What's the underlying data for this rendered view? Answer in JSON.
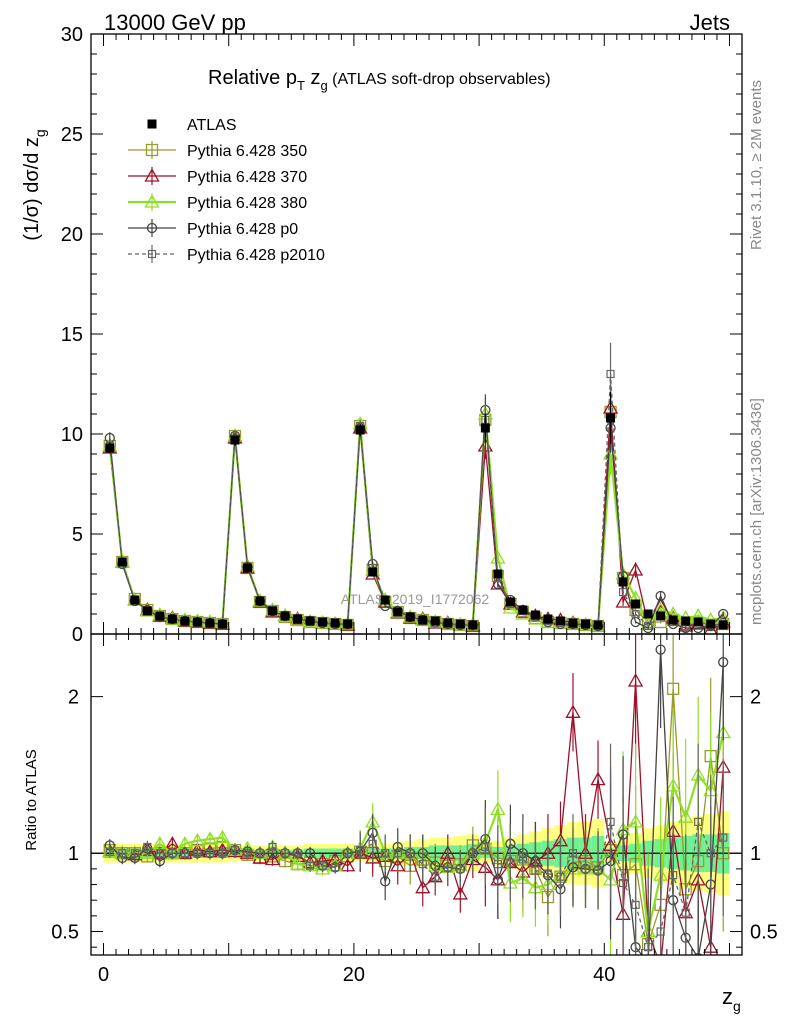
{
  "header": {
    "left": "13000 GeV pp",
    "right": "Jets"
  },
  "side": {
    "rivet": "Rivet 3.1.10, ≥ 2M events",
    "mcplots": "mcplots.cern.ch [arXiv:1306.3436]"
  },
  "watermark": "ATLAS_2019_I1772062",
  "colors": {
    "ATLAS": "#000000",
    "p350": "#9a9a2a",
    "p370": "#a0102a",
    "p380": "#8fe023",
    "p0": "#444444",
    "p2010": "#666666",
    "band_outer": "#ffff80",
    "band_inner": "#70f090"
  },
  "chart_data": [
    {
      "type": "line",
      "title_main": "Relative p",
      "title_sub_T": "T",
      "title_mid": " z",
      "title_sub_g": "g",
      "title_rest": " (ATLAS soft-drop observables)",
      "ylabel": "(1/σ) dσ/d z",
      "ylabel_sub": "g",
      "xlabel": "z",
      "xlabel_sub": "g",
      "xlim": [
        -1,
        51
      ],
      "ylim": [
        0,
        30
      ],
      "yticks": [
        0,
        5,
        10,
        15,
        20,
        25,
        30
      ],
      "xticks": [
        0,
        20,
        40
      ],
      "legend_position": "top-left",
      "series": [
        {
          "name": "ATLAS",
          "key": "ATLAS",
          "values": [
            9.3,
            3.6,
            1.7,
            1.15,
            0.9,
            0.75,
            0.65,
            0.6,
            0.55,
            0.5,
            9.7,
            3.3,
            1.65,
            1.15,
            0.9,
            0.75,
            0.65,
            0.6,
            0.55,
            0.5,
            10.2,
            3.1,
            1.7,
            1.1,
            0.85,
            0.7,
            0.65,
            0.55,
            0.5,
            0.45,
            10.3,
            3.0,
            1.6,
            1.2,
            0.95,
            0.75,
            0.65,
            0.55,
            0.5,
            0.45,
            10.8,
            2.6,
            1.5,
            1.0,
            0.9,
            0.7,
            0.65,
            0.6,
            0.5,
            0.45
          ]
        },
        {
          "name": "Pythia 6.428 350",
          "key": "p350",
          "values": [
            9.4,
            3.6,
            1.75,
            1.2,
            0.9,
            0.75,
            0.65,
            0.6,
            0.55,
            0.5,
            9.9,
            3.3,
            1.6,
            1.15,
            0.85,
            0.7,
            0.6,
            0.55,
            0.5,
            0.45,
            10.4,
            3.2,
            1.6,
            1.1,
            0.8,
            0.7,
            0.6,
            0.5,
            0.45,
            0.4,
            10.7,
            2.9,
            1.5,
            1.1,
            0.8,
            0.6,
            0.55,
            0.5,
            0.45,
            0.4,
            11.1,
            2.8,
            1.2,
            0.6,
            0.6,
            0.7,
            0.5,
            0.55,
            0.45,
            0.5
          ]
        },
        {
          "name": "Pythia 6.428 370",
          "key": "p370",
          "values": [
            9.3,
            3.6,
            1.7,
            1.2,
            0.9,
            0.8,
            0.65,
            0.6,
            0.55,
            0.5,
            9.8,
            3.3,
            1.6,
            1.1,
            0.9,
            0.75,
            0.6,
            0.55,
            0.5,
            0.45,
            10.3,
            3.0,
            1.6,
            1.05,
            0.8,
            0.75,
            0.55,
            0.55,
            0.45,
            0.4,
            9.4,
            2.5,
            1.5,
            1.1,
            0.9,
            0.75,
            0.7,
            0.55,
            0.45,
            0.4,
            11.3,
            1.6,
            3.2,
            0.5,
            1.4,
            0.8,
            0.4,
            0.5,
            0.2,
            0.6
          ]
        },
        {
          "name": "Pythia 6.428 380",
          "key": "p380",
          "values": [
            9.4,
            3.6,
            1.7,
            1.15,
            0.95,
            0.75,
            0.7,
            0.65,
            0.6,
            0.55,
            9.9,
            3.4,
            1.65,
            1.2,
            0.9,
            0.7,
            0.6,
            0.55,
            0.5,
            0.5,
            10.5,
            3.2,
            1.7,
            1.1,
            0.85,
            0.7,
            0.6,
            0.5,
            0.45,
            0.45,
            11.0,
            3.8,
            1.3,
            1.0,
            0.75,
            0.6,
            0.55,
            0.5,
            0.45,
            0.4,
            9.0,
            3.0,
            1.8,
            0.5,
            1.2,
            1.0,
            0.8,
            0.9,
            0.7,
            0.8
          ]
        },
        {
          "name": "Pythia 6.428 p0",
          "key": "p0",
          "values": [
            9.8,
            3.5,
            1.65,
            1.2,
            0.85,
            0.75,
            0.65,
            0.6,
            0.55,
            0.5,
            9.9,
            3.35,
            1.65,
            1.15,
            0.9,
            0.75,
            0.65,
            0.55,
            0.5,
            0.5,
            10.3,
            3.5,
            1.4,
            1.15,
            0.85,
            0.7,
            0.6,
            0.5,
            0.45,
            0.45,
            11.2,
            2.5,
            1.7,
            1.2,
            0.9,
            0.6,
            0.5,
            0.5,
            0.45,
            0.4,
            10.3,
            2.9,
            0.6,
            0.3,
            1.9,
            0.5,
            0.3,
            0.3,
            0.4,
            1.0
          ]
        },
        {
          "name": "Pythia 6.428 p2010",
          "key": "p2010",
          "values": [
            9.4,
            3.6,
            1.7,
            1.2,
            0.9,
            0.75,
            0.65,
            0.6,
            0.55,
            0.5,
            9.9,
            3.3,
            1.65,
            1.2,
            0.9,
            0.75,
            0.6,
            0.55,
            0.5,
            0.5,
            10.4,
            3.3,
            1.7,
            1.1,
            0.85,
            0.65,
            0.55,
            0.5,
            0.45,
            0.45,
            10.7,
            2.8,
            1.5,
            1.15,
            0.85,
            0.65,
            0.55,
            0.55,
            0.45,
            0.4,
            13.0,
            2.1,
            1.0,
            0.4,
            0.9,
            0.6,
            0.4,
            0.6,
            0.45,
            0.5
          ]
        }
      ]
    },
    {
      "type": "line",
      "ylabel": "Ratio to ATLAS",
      "ylim": [
        0.35,
        2.4
      ],
      "yticks": [
        0.5,
        1,
        2
      ],
      "ytick_labels": [
        "0.5",
        "1",
        "2"
      ],
      "band_rel_outer": [
        0.06,
        0.06,
        0.06,
        0.06,
        0.06,
        0.06,
        0.06,
        0.06,
        0.06,
        0.06,
        0.05,
        0.05,
        0.05,
        0.05,
        0.05,
        0.05,
        0.06,
        0.06,
        0.06,
        0.06,
        0.05,
        0.06,
        0.06,
        0.07,
        0.08,
        0.09,
        0.1,
        0.1,
        0.11,
        0.12,
        0.06,
        0.08,
        0.1,
        0.12,
        0.14,
        0.16,
        0.18,
        0.2,
        0.2,
        0.22,
        0.07,
        0.1,
        0.13,
        0.16,
        0.18,
        0.2,
        0.22,
        0.24,
        0.25,
        0.27
      ],
      "band_rel_inner": [
        0.03,
        0.03,
        0.03,
        0.03,
        0.03,
        0.03,
        0.03,
        0.03,
        0.03,
        0.03,
        0.02,
        0.02,
        0.02,
        0.02,
        0.02,
        0.02,
        0.03,
        0.03,
        0.03,
        0.03,
        0.02,
        0.03,
        0.03,
        0.03,
        0.04,
        0.04,
        0.05,
        0.05,
        0.05,
        0.06,
        0.03,
        0.04,
        0.05,
        0.06,
        0.07,
        0.08,
        0.09,
        0.1,
        0.1,
        0.11,
        0.03,
        0.05,
        0.06,
        0.08,
        0.09,
        0.1,
        0.11,
        0.12,
        0.12,
        0.13
      ],
      "series": [
        {
          "name": "Pythia 6.428 350",
          "key": "p350",
          "values": [
            1.02,
            1.0,
            1.0,
            0.98,
            1.0,
            1.0,
            1.0,
            1.02,
            1.03,
            1.04,
            1.02,
            0.99,
            0.97,
            0.98,
            0.95,
            0.93,
            0.94,
            0.93,
            0.95,
            0.98,
            1.01,
            1.0,
            0.95,
            0.98,
            0.92,
            0.96,
            0.94,
            0.92,
            0.93,
            1.05,
            1.03,
            0.97,
            0.95,
            0.96,
            0.9,
            0.72,
            0.85,
            0.94,
            0.95,
            0.91,
            1.02,
            0.86,
            0.93,
            0.42,
            0.67,
            2.05,
            0.77,
            0.95,
            1.62,
            1.0
          ]
        },
        {
          "name": "Pythia 6.428 370",
          "key": "p370",
          "values": [
            1.01,
            1.0,
            0.99,
            1.02,
            1.0,
            1.06,
            1.0,
            1.02,
            1.01,
            1.02,
            1.01,
            1.0,
            0.97,
            0.96,
            1.0,
            0.98,
            0.94,
            0.95,
            0.96,
            0.92,
            1.0,
            0.97,
            0.98,
            0.92,
            1.0,
            0.78,
            0.85,
            1.0,
            0.74,
            0.96,
            0.91,
            0.83,
            0.94,
            0.88,
            0.95,
            1.0,
            1.08,
            1.9,
            1.0,
            1.47,
            1.05,
            0.61,
            2.1,
            0.5,
            0.28,
            1.14,
            0.62,
            0.83,
            0.4,
            1.55
          ]
        },
        {
          "name": "Pythia 6.428 380",
          "key": "p380",
          "values": [
            1.01,
            1.0,
            1.0,
            1.0,
            1.06,
            1.0,
            1.06,
            1.08,
            1.09,
            1.1,
            1.02,
            1.03,
            1.0,
            1.04,
            1.0,
            0.93,
            0.92,
            0.9,
            0.92,
            1.0,
            1.03,
            1.2,
            1.0,
            1.0,
            1.0,
            1.0,
            0.92,
            0.91,
            0.92,
            1.0,
            1.07,
            1.28,
            0.81,
            0.84,
            0.78,
            0.8,
            0.86,
            0.9,
            0.9,
            0.9,
            0.83,
            1.15,
            1.2,
            0.5,
            0.86,
            1.43,
            1.23,
            1.5,
            1.4,
            1.77
          ]
        },
        {
          "name": "Pythia 6.428 p0",
          "key": "p0",
          "values": [
            1.05,
            0.97,
            0.97,
            1.03,
            0.95,
            1.0,
            1.0,
            1.0,
            1.0,
            1.0,
            1.02,
            1.01,
            1.0,
            1.0,
            1.0,
            1.0,
            1.0,
            0.92,
            0.91,
            1.0,
            1.01,
            1.13,
            0.82,
            1.04,
            1.0,
            1.0,
            0.92,
            0.91,
            0.9,
            1.0,
            1.09,
            0.83,
            1.06,
            1.0,
            0.95,
            0.86,
            0.77,
            0.91,
            0.9,
            0.89,
            0.95,
            1.12,
            0.4,
            0.3,
            2.3,
            0.7,
            0.46,
            0.33,
            0.8,
            2.22
          ]
        },
        {
          "name": "Pythia 6.428 p2010",
          "key": "p2010",
          "values": [
            1.01,
            1.0,
            1.0,
            1.04,
            1.0,
            1.0,
            1.0,
            1.0,
            1.0,
            1.0,
            1.02,
            1.0,
            1.0,
            1.04,
            1.0,
            1.0,
            0.92,
            0.92,
            0.91,
            1.0,
            1.02,
            1.06,
            1.0,
            1.0,
            1.0,
            0.93,
            0.85,
            0.91,
            0.9,
            1.0,
            1.04,
            0.93,
            0.94,
            0.96,
            0.89,
            0.87,
            0.85,
            1.0,
            0.9,
            0.89,
            1.2,
            0.81,
            0.67,
            0.4,
            0.5,
            0.86,
            0.62,
            1.2,
            1.0,
            1.1
          ]
        }
      ]
    }
  ]
}
